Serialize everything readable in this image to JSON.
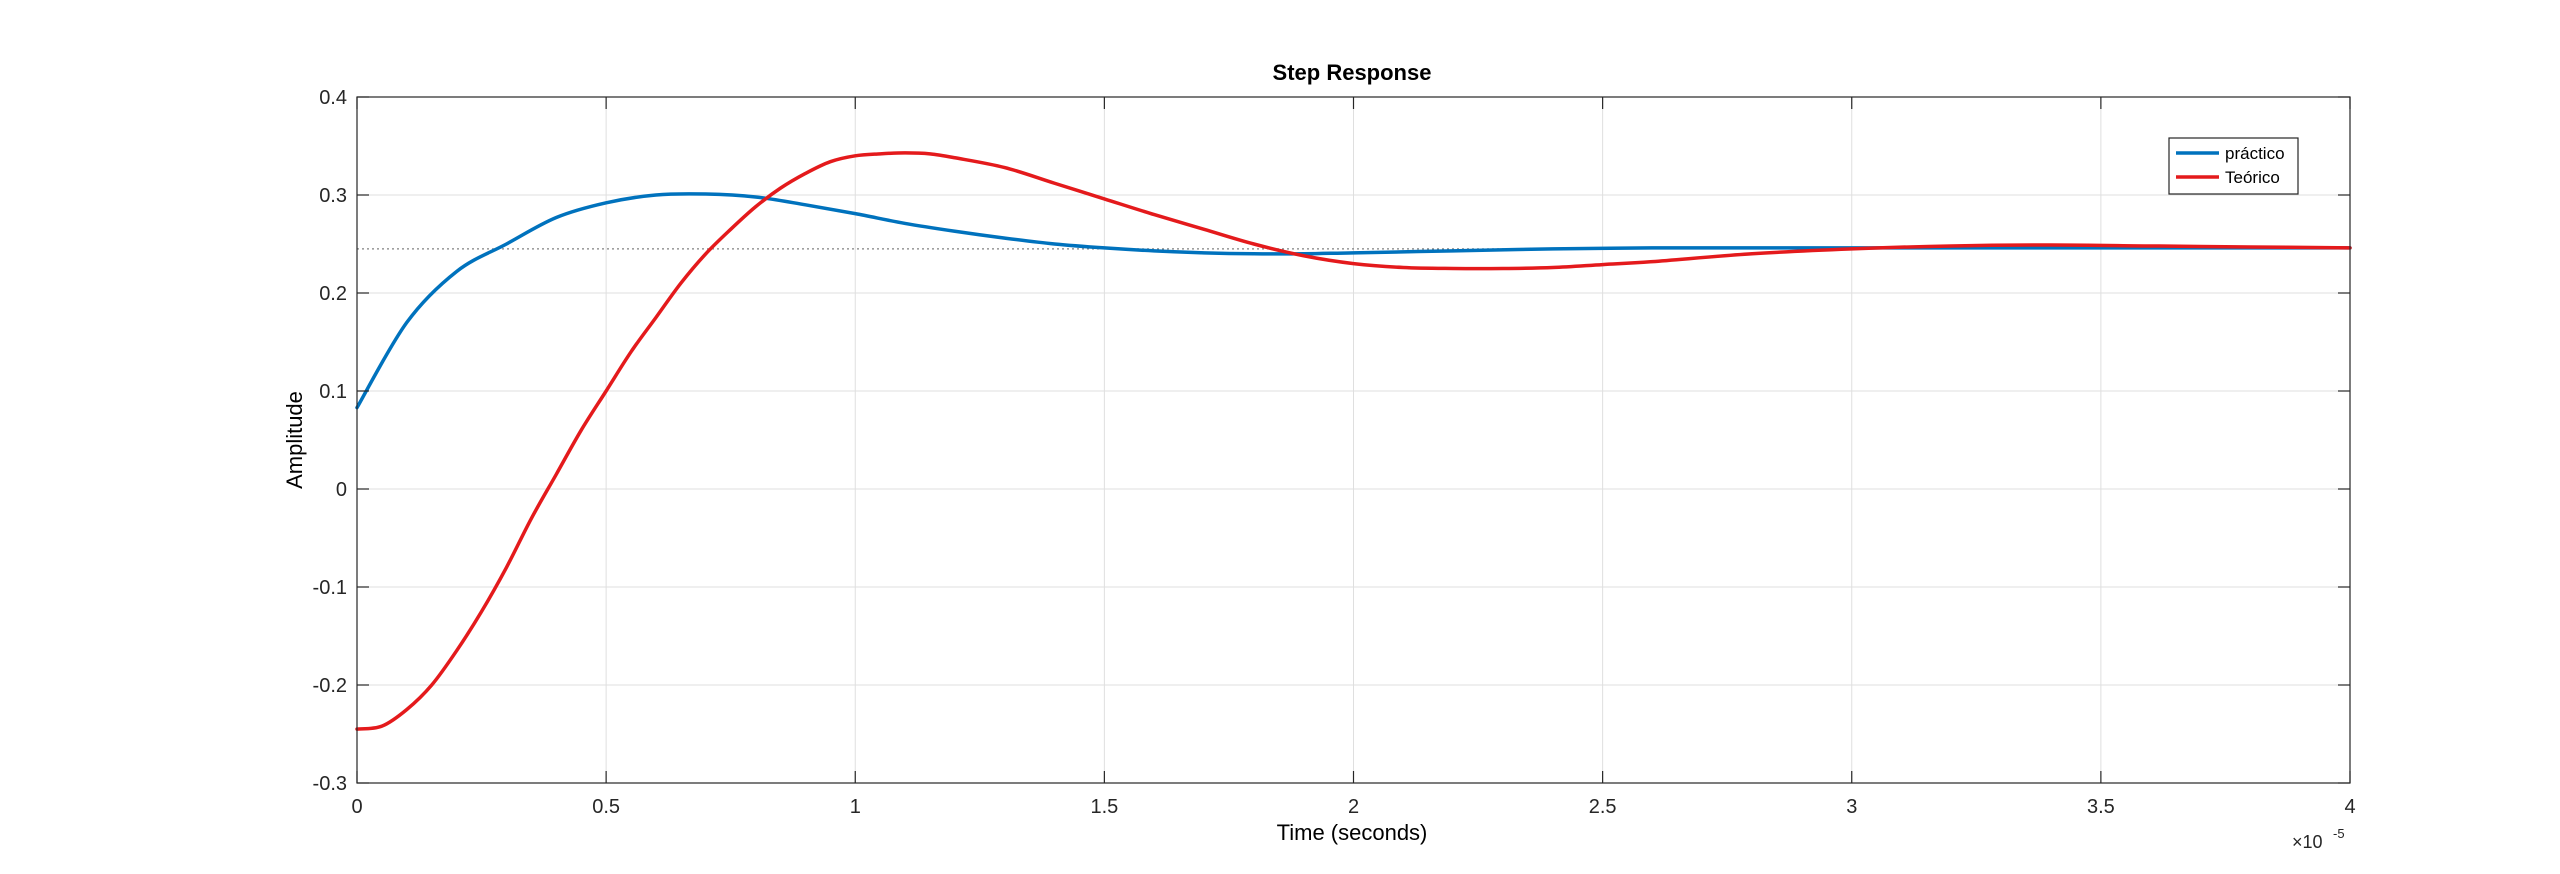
{
  "chart_data": {
    "type": "line",
    "title": "Step Response",
    "xlabel": "Time (seconds)",
    "ylabel": "Amplitude",
    "x_exponent_label": "×10",
    "x_exponent_power": "-5",
    "xlim": [
      0,
      4
    ],
    "ylim": [
      -0.3,
      0.4
    ],
    "xticks": [
      "0",
      "0.5",
      "1",
      "1.5",
      "2",
      "2.5",
      "3",
      "3.5",
      "4"
    ],
    "yticks": [
      "-0.3",
      "-0.2",
      "-0.1",
      "0",
      "0.1",
      "0.2",
      "0.3",
      "0.4"
    ],
    "grid": true,
    "legend_position": "top-right",
    "steady_state_value": 0.245,
    "series": [
      {
        "name": "práctico",
        "color": "#0072BD",
        "x": [
          0,
          0.1,
          0.2,
          0.3,
          0.4,
          0.5,
          0.6,
          0.7,
          0.8,
          0.9,
          1.0,
          1.1,
          1.2,
          1.3,
          1.4,
          1.5,
          1.6,
          1.7,
          1.8,
          1.9,
          2.0,
          2.2,
          2.4,
          2.6,
          2.8,
          3.0,
          3.2,
          3.4,
          3.6,
          3.8,
          4.0
        ],
        "y": [
          0.083,
          0.17,
          0.222,
          0.25,
          0.277,
          0.292,
          0.3,
          0.301,
          0.298,
          0.29,
          0.281,
          0.271,
          0.263,
          0.256,
          0.25,
          0.246,
          0.243,
          0.241,
          0.24,
          0.24,
          0.241,
          0.243,
          0.245,
          0.246,
          0.246,
          0.246,
          0.246,
          0.246,
          0.246,
          0.246,
          0.246
        ]
      },
      {
        "name": "Teórico",
        "color": "#E41A1C",
        "x": [
          0,
          0.05,
          0.1,
          0.15,
          0.2,
          0.25,
          0.3,
          0.35,
          0.4,
          0.45,
          0.5,
          0.55,
          0.6,
          0.65,
          0.7,
          0.75,
          0.8,
          0.85,
          0.9,
          0.95,
          1.0,
          1.05,
          1.1,
          1.15,
          1.2,
          1.3,
          1.4,
          1.5,
          1.6,
          1.7,
          1.8,
          1.9,
          2.0,
          2.1,
          2.2,
          2.3,
          2.4,
          2.5,
          2.6,
          2.8,
          3.0,
          3.2,
          3.4,
          3.6,
          3.8,
          4.0
        ],
        "y": [
          -0.245,
          -0.242,
          -0.225,
          -0.2,
          -0.165,
          -0.125,
          -0.08,
          -0.03,
          0.015,
          0.06,
          0.1,
          0.14,
          0.175,
          0.21,
          0.24,
          0.265,
          0.288,
          0.307,
          0.322,
          0.334,
          0.34,
          0.342,
          0.343,
          0.342,
          0.338,
          0.328,
          0.312,
          0.296,
          0.28,
          0.265,
          0.25,
          0.238,
          0.23,
          0.226,
          0.225,
          0.225,
          0.226,
          0.229,
          0.232,
          0.24,
          0.245,
          0.248,
          0.249,
          0.248,
          0.247,
          0.246
        ]
      }
    ]
  }
}
